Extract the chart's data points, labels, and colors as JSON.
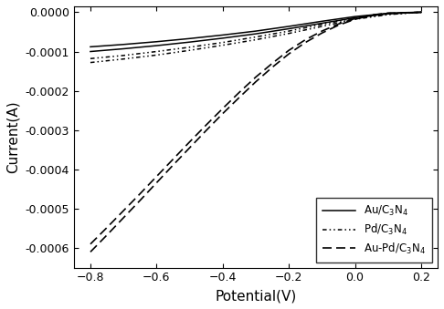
{
  "xlabel": "Potential(V)",
  "ylabel": "Current(A)",
  "xlim": [
    -0.85,
    0.25
  ],
  "ylim": [
    -0.00065,
    1.5e-05
  ],
  "xticks": [
    -0.8,
    -0.6,
    -0.4,
    -0.2,
    0.0,
    0.2
  ],
  "yticks": [
    0.0,
    -0.0001,
    -0.0002,
    -0.0003,
    -0.0004,
    -0.0005,
    -0.0006
  ],
  "curve_color": "black",
  "figsize": [
    4.86,
    3.39
  ],
  "dpi": 100,
  "au_x": [
    -0.8,
    -0.7,
    -0.6,
    -0.5,
    -0.4,
    -0.3,
    -0.2,
    -0.1,
    0.0,
    0.1,
    0.2
  ],
  "au_y1": [
    -8.8e-05,
    -8.2e-05,
    -7.5e-05,
    -6.7e-05,
    -5.8e-05,
    -4.8e-05,
    -3.6e-05,
    -2.3e-05,
    -1.1e-05,
    -3e-06,
    0.0
  ],
  "au_y2": [
    -0.0001,
    -9.3e-05,
    -8.5e-05,
    -7.6e-05,
    -6.6e-05,
    -5.5e-05,
    -4.2e-05,
    -2.8e-05,
    -1.4e-05,
    -4e-06,
    0.0
  ],
  "pd_x": [
    -0.8,
    -0.7,
    -0.6,
    -0.5,
    -0.4,
    -0.3,
    -0.2,
    -0.1,
    0.0,
    0.1,
    0.2
  ],
  "pd_y1": [
    -0.000118,
    -0.00011,
    -0.0001,
    -8.9e-05,
    -7.7e-05,
    -6.3e-05,
    -4.8e-05,
    -3.1e-05,
    -1.5e-05,
    -5e-06,
    0.0
  ],
  "pd_y2": [
    -0.000128,
    -0.000119,
    -0.000109,
    -9.7e-05,
    -8.4e-05,
    -7e-05,
    -5.4e-05,
    -3.6e-05,
    -1.8e-05,
    -6e-06,
    0.0
  ],
  "aupd_x": [
    -0.8,
    -0.75,
    -0.7,
    -0.65,
    -0.6,
    -0.55,
    -0.5,
    -0.45,
    -0.4,
    -0.35,
    -0.3,
    -0.25,
    -0.2,
    -0.15,
    -0.1,
    -0.05,
    0.0,
    0.05,
    0.1,
    0.15,
    0.2
  ],
  "aupd_y1": [
    -0.00059,
    -0.000548,
    -0.000505,
    -0.000462,
    -0.000418,
    -0.000374,
    -0.00033,
    -0.000287,
    -0.000245,
    -0.000204,
    -0.000165,
    -0.00013,
    -9.7e-05,
    -7e-05,
    -4.8e-05,
    -3e-05,
    -1.6e-05,
    -7e-06,
    -2e-06,
    -1e-06,
    0.0
  ],
  "aupd_y2": [
    -0.00061,
    -0.000567,
    -0.000523,
    -0.000479,
    -0.000434,
    -0.000389,
    -0.000345,
    -0.000301,
    -0.000258,
    -0.000217,
    -0.000177,
    -0.00014,
    -0.000106,
    -7.7e-05,
    -5.3e-05,
    -3.3e-05,
    -1.8e-05,
    -8e-06,
    -3e-06,
    -1e-06,
    0.0
  ]
}
